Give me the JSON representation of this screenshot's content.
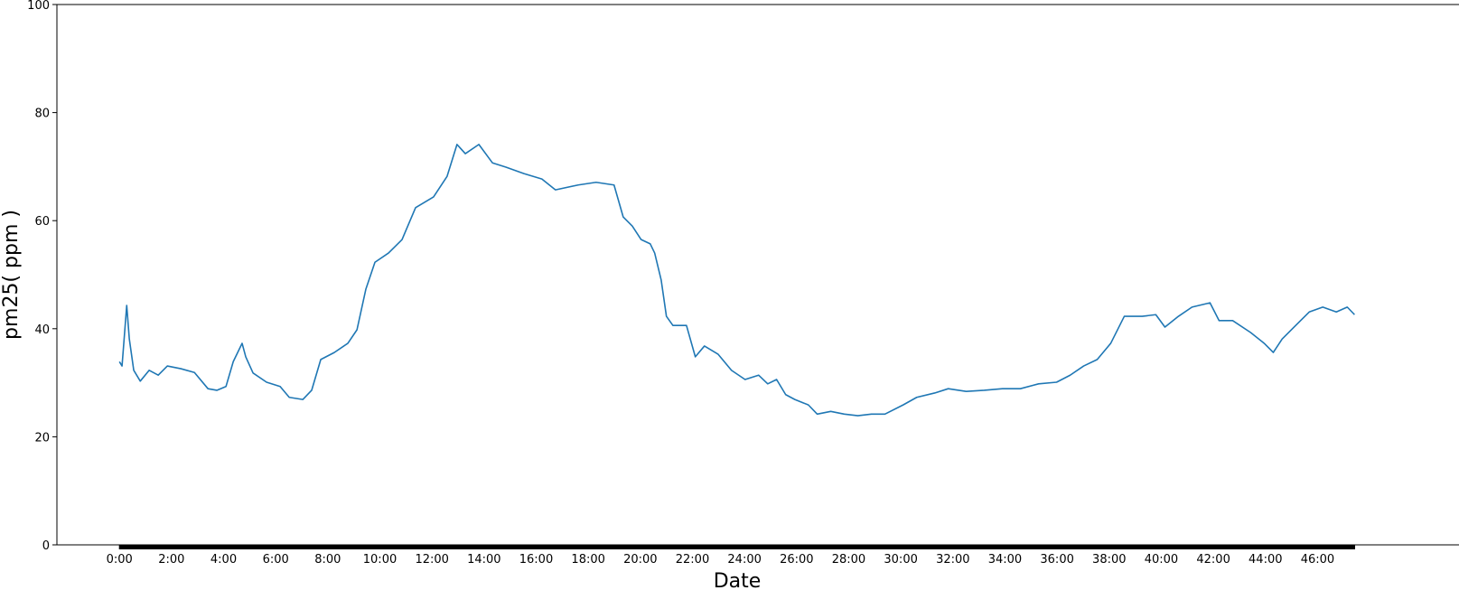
{
  "chart_data": {
    "type": "line",
    "xlabel": "Date",
    "ylabel": "pm25( ppm )",
    "x": [
      0,
      0.1,
      0.28,
      0.38,
      0.55,
      0.8,
      1.14,
      1.49,
      1.84,
      2.36,
      2.88,
      3.4,
      3.74,
      4.09,
      4.37,
      4.71,
      4.85,
      5.13,
      5.65,
      6.17,
      6.52,
      7.04,
      7.38,
      7.73,
      8.25,
      8.77,
      9.12,
      9.46,
      9.81,
      10.33,
      10.85,
      11.37,
      12.06,
      12.58,
      12.96,
      13.28,
      13.8,
      14.32,
      14.84,
      15.53,
      16.22,
      16.74,
      17.61,
      18.3,
      18.99,
      19.34,
      19.69,
      20.03,
      20.38,
      20.55,
      20.8,
      21.0,
      21.25,
      21.77,
      22.11,
      22.46,
      22.98,
      23.5,
      24.02,
      24.54,
      24.89,
      25.23,
      25.58,
      25.93,
      26.45,
      26.79,
      27.31,
      27.83,
      28.35,
      28.87,
      29.39,
      30.09,
      30.61,
      31.3,
      31.82,
      32.51,
      33.2,
      33.9,
      34.59,
      35.29,
      35.98,
      36.5,
      37.02,
      37.54,
      38.06,
      38.58,
      39.27,
      39.79,
      40.14,
      40.66,
      41.18,
      41.87,
      42.22,
      42.74,
      43.43,
      43.95,
      44.3,
      44.64,
      45.16,
      45.68,
      46.2,
      46.72,
      47.14,
      47.42
    ],
    "series": [
      {
        "name": "pm25",
        "color": "#1f77b4",
        "values": [
          33.9,
          33.1,
          44.3,
          38.1,
          32.3,
          30.3,
          32.3,
          31.4,
          33.1,
          32.6,
          31.9,
          28.9,
          28.6,
          29.3,
          33.9,
          37.3,
          34.8,
          31.8,
          30.1,
          29.3,
          27.3,
          26.9,
          28.6,
          34.3,
          35.6,
          37.3,
          39.8,
          47.3,
          52.3,
          54.0,
          56.5,
          62.4,
          64.4,
          68.2,
          74.1,
          72.4,
          74.1,
          70.7,
          69.9,
          68.7,
          67.7,
          65.7,
          66.6,
          67.1,
          66.6,
          60.7,
          59.0,
          56.5,
          55.7,
          54.0,
          49.0,
          42.3,
          40.6,
          40.6,
          34.8,
          36.8,
          35.3,
          32.3,
          30.6,
          31.4,
          29.8,
          30.6,
          27.8,
          26.9,
          25.9,
          24.2,
          24.7,
          24.2,
          23.9,
          24.2,
          24.2,
          25.9,
          27.3,
          28.1,
          28.9,
          28.4,
          28.6,
          28.9,
          28.9,
          29.8,
          30.1,
          31.4,
          33.1,
          34.3,
          37.3,
          42.3,
          42.3,
          42.6,
          40.3,
          42.3,
          44.0,
          44.8,
          41.5,
          41.5,
          39.3,
          37.3,
          35.6,
          38.1,
          40.6,
          43.1,
          44.0,
          43.1,
          44.0,
          42.6
        ]
      }
    ],
    "xlim": [
      -2.4,
      49.8
    ],
    "xticks": [
      {
        "value": 0,
        "label": "0:00"
      },
      {
        "value": 2,
        "label": "2:00"
      },
      {
        "value": 4,
        "label": "4:00"
      },
      {
        "value": 6,
        "label": "6:00"
      },
      {
        "value": 8,
        "label": "8:00"
      },
      {
        "value": 10,
        "label": "10:00"
      },
      {
        "value": 12,
        "label": "12:00"
      },
      {
        "value": 14,
        "label": "14:00"
      },
      {
        "value": 16,
        "label": "16:00"
      },
      {
        "value": 18,
        "label": "18:00"
      },
      {
        "value": 20,
        "label": "20:00"
      },
      {
        "value": 22,
        "label": "22:00"
      },
      {
        "value": 24,
        "label": "24:00"
      },
      {
        "value": 26,
        "label": "26:00"
      },
      {
        "value": 28,
        "label": "28:00"
      },
      {
        "value": 30,
        "label": "30:00"
      },
      {
        "value": 32,
        "label": "32:00"
      },
      {
        "value": 34,
        "label": "34:00"
      },
      {
        "value": 36,
        "label": "36:00"
      },
      {
        "value": 38,
        "label": "38:00"
      },
      {
        "value": 40,
        "label": "40:00"
      },
      {
        "value": 42,
        "label": "42:00"
      },
      {
        "value": 44,
        "label": "44:00"
      },
      {
        "value": 46,
        "label": "46:00"
      }
    ],
    "ylim": [
      0,
      100
    ],
    "yticks": [
      0,
      20,
      40,
      60,
      80,
      100
    ],
    "grid": false
  }
}
